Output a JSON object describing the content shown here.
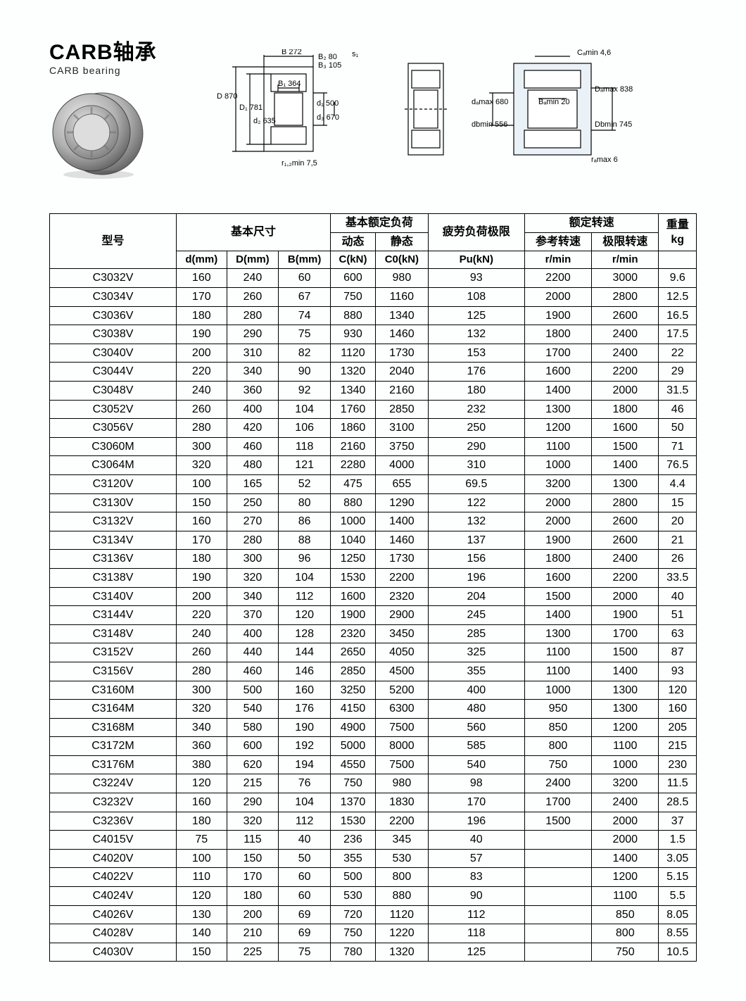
{
  "title": {
    "main": "CARB轴承",
    "sub": "CARB bearing"
  },
  "diagram1": {
    "B": "B 272",
    "B2": "B₂ 80",
    "B3": "B₃ 105",
    "s1": "s₁",
    "D": "D 870",
    "D1": "D₁ 781",
    "B1": "B₁ 364",
    "d2": "d₂ 635",
    "d1": "d₁ 500",
    "d3": "d₃ 670",
    "r12min": "r₁,₂min 7,5"
  },
  "diagram2": {},
  "diagram3": {
    "Camin": "Cₐmin 4,6",
    "damax": "dₐmax 680",
    "Bamin": "Bₐmin 20",
    "dbmin": "dbmin 556",
    "Damax": "Dₐmax 838",
    "Dbmin": "Dbmin 745",
    "ramax": "rₐmax 6"
  },
  "table": {
    "headers": {
      "model": "型号",
      "basic_dim": "基本尺寸",
      "basic_load": "基本额定负荷",
      "dynamic": "动态",
      "static": "静态",
      "fatigue": "疲劳负荷极限",
      "rated_speed": "额定转速",
      "ref_speed": "参考转速",
      "limit_speed": "极限转速",
      "weight": "重量",
      "d": "d(mm)",
      "D": "D(mm)",
      "B": "B(mm)",
      "C": "C(kN)",
      "C0": "C0(kN)",
      "Pu": "Pu(kN)",
      "rmin1": "r/min",
      "rmin2": "r/min",
      "kg": "kg"
    },
    "rows": [
      [
        "C3032V",
        "160",
        "240",
        "60",
        "600",
        "980",
        "93",
        "2200",
        "3000",
        "9.6"
      ],
      [
        "C3034V",
        "170",
        "260",
        "67",
        "750",
        "1160",
        "108",
        "2000",
        "2800",
        "12.5"
      ],
      [
        "C3036V",
        "180",
        "280",
        "74",
        "880",
        "1340",
        "125",
        "1900",
        "2600",
        "16.5"
      ],
      [
        "C3038V",
        "190",
        "290",
        "75",
        "930",
        "1460",
        "132",
        "1800",
        "2400",
        "17.5"
      ],
      [
        "C3040V",
        "200",
        "310",
        "82",
        "1120",
        "1730",
        "153",
        "1700",
        "2400",
        "22"
      ],
      [
        "C3044V",
        "220",
        "340",
        "90",
        "1320",
        "2040",
        "176",
        "1600",
        "2200",
        "29"
      ],
      [
        "C3048V",
        "240",
        "360",
        "92",
        "1340",
        "2160",
        "180",
        "1400",
        "2000",
        "31.5"
      ],
      [
        "C3052V",
        "260",
        "400",
        "104",
        "1760",
        "2850",
        "232",
        "1300",
        "1800",
        "46"
      ],
      [
        "C3056V",
        "280",
        "420",
        "106",
        "1860",
        "3100",
        "250",
        "1200",
        "1600",
        "50"
      ],
      [
        "C3060M",
        "300",
        "460",
        "118",
        "2160",
        "3750",
        "290",
        "1100",
        "1500",
        "71"
      ],
      [
        "C3064M",
        "320",
        "480",
        "121",
        "2280",
        "4000",
        "310",
        "1000",
        "1400",
        "76.5"
      ],
      [
        "C3120V",
        "100",
        "165",
        "52",
        "475",
        "655",
        "69.5",
        "3200",
        "1300",
        "4.4"
      ],
      [
        "C3130V",
        "150",
        "250",
        "80",
        "880",
        "1290",
        "122",
        "2000",
        "2800",
        "15"
      ],
      [
        "C3132V",
        "160",
        "270",
        "86",
        "1000",
        "1400",
        "132",
        "2000",
        "2600",
        "20"
      ],
      [
        "C3134V",
        "170",
        "280",
        "88",
        "1040",
        "1460",
        "137",
        "1900",
        "2600",
        "21"
      ],
      [
        "C3136V",
        "180",
        "300",
        "96",
        "1250",
        "1730",
        "156",
        "1800",
        "2400",
        "26"
      ],
      [
        "C3138V",
        "190",
        "320",
        "104",
        "1530",
        "2200",
        "196",
        "1600",
        "2200",
        "33.5"
      ],
      [
        "C3140V",
        "200",
        "340",
        "112",
        "1600",
        "2320",
        "204",
        "1500",
        "2000",
        "40"
      ],
      [
        "C3144V",
        "220",
        "370",
        "120",
        "1900",
        "2900",
        "245",
        "1400",
        "1900",
        "51"
      ],
      [
        "C3148V",
        "240",
        "400",
        "128",
        "2320",
        "3450",
        "285",
        "1300",
        "1700",
        "63"
      ],
      [
        "C3152V",
        "260",
        "440",
        "144",
        "2650",
        "4050",
        "325",
        "1100",
        "1500",
        "87"
      ],
      [
        "C3156V",
        "280",
        "460",
        "146",
        "2850",
        "4500",
        "355",
        "1100",
        "1400",
        "93"
      ],
      [
        "C3160M",
        "300",
        "500",
        "160",
        "3250",
        "5200",
        "400",
        "1000",
        "1300",
        "120"
      ],
      [
        "C3164M",
        "320",
        "540",
        "176",
        "4150",
        "6300",
        "480",
        "950",
        "1300",
        "160"
      ],
      [
        "C3168M",
        "340",
        "580",
        "190",
        "4900",
        "7500",
        "560",
        "850",
        "1200",
        "205"
      ],
      [
        "C3172M",
        "360",
        "600",
        "192",
        "5000",
        "8000",
        "585",
        "800",
        "1100",
        "215"
      ],
      [
        "C3176M",
        "380",
        "620",
        "194",
        "4550",
        "7500",
        "540",
        "750",
        "1000",
        "230"
      ],
      [
        "C3224V",
        "120",
        "215",
        "76",
        "750",
        "980",
        "98",
        "2400",
        "3200",
        "11.5"
      ],
      [
        "C3232V",
        "160",
        "290",
        "104",
        "1370",
        "1830",
        "170",
        "1700",
        "2400",
        "28.5"
      ],
      [
        "C3236V",
        "180",
        "320",
        "112",
        "1530",
        "2200",
        "196",
        "1500",
        "2000",
        "37"
      ],
      [
        "C4015V",
        "75",
        "115",
        "40",
        "236",
        "345",
        "40",
        "",
        "2000",
        "1.5"
      ],
      [
        "C4020V",
        "100",
        "150",
        "50",
        "355",
        "530",
        "57",
        "",
        "1400",
        "3.05"
      ],
      [
        "C4022V",
        "110",
        "170",
        "60",
        "500",
        "800",
        "83",
        "",
        "1200",
        "5.15"
      ],
      [
        "C4024V",
        "120",
        "180",
        "60",
        "530",
        "880",
        "90",
        "",
        "1100",
        "5.5"
      ],
      [
        "C4026V",
        "130",
        "200",
        "69",
        "720",
        "1120",
        "112",
        "",
        "850",
        "8.05"
      ],
      [
        "C4028V",
        "140",
        "210",
        "69",
        "750",
        "1220",
        "118",
        "",
        "800",
        "8.55"
      ],
      [
        "C4030V",
        "150",
        "225",
        "75",
        "780",
        "1320",
        "125",
        "",
        "750",
        "10.5"
      ]
    ]
  },
  "style": {
    "border_color": "#000000",
    "bg": "#fdfefe",
    "font_size_table": 16,
    "font_size_title": 30
  }
}
